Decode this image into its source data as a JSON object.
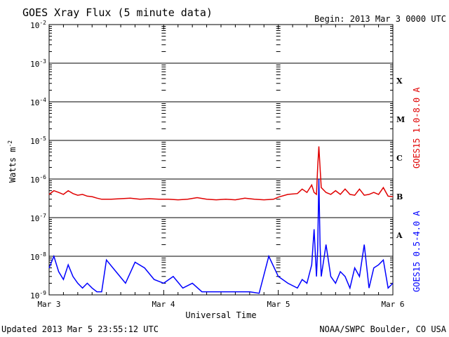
{
  "header": {
    "title": "GOES Xray Flux (5 minute data)",
    "begin_label": "Begin:  2013 Mar 3 0000 UTC"
  },
  "footer": {
    "updated": "Updated 2013 Mar  5 23:55:12 UTC",
    "source": "NOAA/SWPC Boulder, CO USA"
  },
  "chart_data": {
    "type": "line",
    "title": "GOES Xray Flux (5 minute data)",
    "xlabel": "Universal Time",
    "ylabel": "Watts m",
    "ylabel_sup": "-2",
    "y_scale": "log",
    "ylim": [
      1e-09,
      0.01
    ],
    "xlim": [
      "2013-03-03 00:00",
      "2013-03-06 00:00"
    ],
    "x_ticks": [
      "Mar 3",
      "Mar 4",
      "Mar 5",
      "Mar 6"
    ],
    "y_ticks": [
      {
        "base": "10",
        "exp": "-2"
      },
      {
        "base": "10",
        "exp": "-3"
      },
      {
        "base": "10",
        "exp": "-4"
      },
      {
        "base": "10",
        "exp": "-5"
      },
      {
        "base": "10",
        "exp": "-6"
      },
      {
        "base": "10",
        "exp": "-7"
      },
      {
        "base": "10",
        "exp": "-8"
      },
      {
        "base": "10",
        "exp": "-9"
      }
    ],
    "flare_classes": [
      "X",
      "M",
      "C",
      "B",
      "A"
    ],
    "grid": true,
    "colors": {
      "long": "#e00000",
      "short": "#0000ff",
      "axes": "#000000"
    },
    "series": [
      {
        "name": "GOES15 1.0-8.0 A",
        "color": "#e00000",
        "x": [
          "2013-03-03 00:00",
          "2013-03-03 01:00",
          "2013-03-03 02:00",
          "2013-03-03 03:00",
          "2013-03-03 04:00",
          "2013-03-03 05:00",
          "2013-03-03 06:00",
          "2013-03-03 07:00",
          "2013-03-03 08:00",
          "2013-03-03 09:00",
          "2013-03-03 10:00",
          "2013-03-03 11:00",
          "2013-03-03 13:00",
          "2013-03-03 15:00",
          "2013-03-03 17:00",
          "2013-03-03 19:00",
          "2013-03-03 21:00",
          "2013-03-03 23:00",
          "2013-03-04 01:00",
          "2013-03-04 03:00",
          "2013-03-04 05:00",
          "2013-03-04 07:00",
          "2013-03-04 09:00",
          "2013-03-04 11:00",
          "2013-03-04 13:00",
          "2013-03-04 15:00",
          "2013-03-04 17:00",
          "2013-03-04 19:00",
          "2013-03-04 21:00",
          "2013-03-04 23:00",
          "2013-03-05 00:00",
          "2013-03-05 02:00",
          "2013-03-05 04:00",
          "2013-03-05 05:00",
          "2013-03-05 06:00",
          "2013-03-05 07:00",
          "2013-03-05 07:30",
          "2013-03-05 08:00",
          "2013-03-05 08:15",
          "2013-03-05 08:30",
          "2013-03-05 08:45",
          "2013-03-05 09:00",
          "2013-03-05 10:00",
          "2013-03-05 11:00",
          "2013-03-05 12:00",
          "2013-03-05 13:00",
          "2013-03-05 14:00",
          "2013-03-05 15:00",
          "2013-03-05 16:00",
          "2013-03-05 17:00",
          "2013-03-05 18:00",
          "2013-03-05 19:00",
          "2013-03-05 20:00",
          "2013-03-05 21:00",
          "2013-03-05 22:00",
          "2013-03-05 23:00",
          "2013-03-06 00:00"
        ],
        "y": [
          4e-07,
          5e-07,
          4.5e-07,
          4e-07,
          5e-07,
          4.2e-07,
          3.8e-07,
          4e-07,
          3.6e-07,
          3.5e-07,
          3.2e-07,
          3e-07,
          3e-07,
          3.1e-07,
          3.2e-07,
          3e-07,
          3.1e-07,
          3e-07,
          3e-07,
          2.9e-07,
          3e-07,
          3.3e-07,
          3e-07,
          2.9e-07,
          3e-07,
          2.9e-07,
          3.2e-07,
          3e-07,
          2.9e-07,
          3e-07,
          3.4e-07,
          4e-07,
          4.2e-07,
          5.5e-07,
          4.5e-07,
          7e-07,
          4.5e-07,
          4e-07,
          2e-06,
          7e-06,
          2e-06,
          6e-07,
          4.5e-07,
          4e-07,
          5e-07,
          4e-07,
          5.5e-07,
          4e-07,
          3.8e-07,
          5.5e-07,
          3.8e-07,
          4e-07,
          4.5e-07,
          4e-07,
          6e-07,
          3.6e-07,
          3.5e-07
        ]
      },
      {
        "name": "GOES15 0.5-4.0 A",
        "color": "#0000ff",
        "x": [
          "2013-03-03 00:00",
          "2013-03-03 01:00",
          "2013-03-03 02:00",
          "2013-03-03 03:00",
          "2013-03-03 04:00",
          "2013-03-03 05:00",
          "2013-03-03 06:00",
          "2013-03-03 07:00",
          "2013-03-03 08:00",
          "2013-03-03 09:00",
          "2013-03-03 10:00",
          "2013-03-03 11:00",
          "2013-03-03 12:00",
          "2013-03-03 14:00",
          "2013-03-03 16:00",
          "2013-03-03 18:00",
          "2013-03-03 20:00",
          "2013-03-03 22:00",
          "2013-03-04 00:00",
          "2013-03-04 02:00",
          "2013-03-04 04:00",
          "2013-03-04 06:00",
          "2013-03-04 08:00",
          "2013-03-04 10:00",
          "2013-03-04 12:00",
          "2013-03-04 14:00",
          "2013-03-04 16:00",
          "2013-03-04 18:00",
          "2013-03-04 20:00",
          "2013-03-04 22:00",
          "2013-03-05 00:00",
          "2013-03-05 02:00",
          "2013-03-05 04:00",
          "2013-03-05 05:00",
          "2013-03-05 06:00",
          "2013-03-05 07:00",
          "2013-03-05 07:30",
          "2013-03-05 08:00",
          "2013-03-05 08:15",
          "2013-03-05 08:30",
          "2013-03-05 08:45",
          "2013-03-05 09:00",
          "2013-03-05 10:00",
          "2013-03-05 11:00",
          "2013-03-05 12:00",
          "2013-03-05 13:00",
          "2013-03-05 14:00",
          "2013-03-05 15:00",
          "2013-03-05 16:00",
          "2013-03-05 17:00",
          "2013-03-05 18:00",
          "2013-03-05 19:00",
          "2013-03-05 20:00",
          "2013-03-05 21:00",
          "2013-03-05 22:00",
          "2013-03-05 23:00",
          "2013-03-06 00:00"
        ],
        "y": [
          5e-09,
          1e-08,
          4e-09,
          2.5e-09,
          6e-09,
          3e-09,
          2e-09,
          1.5e-09,
          2e-09,
          1.5e-09,
          1.2e-09,
          1.2e-09,
          8e-09,
          4e-09,
          2e-09,
          7e-09,
          5e-09,
          2.5e-09,
          2e-09,
          3e-09,
          1.5e-09,
          2e-09,
          1.2e-09,
          1.2e-09,
          1.2e-09,
          1.2e-09,
          1.2e-09,
          1.2e-09,
          1.1e-09,
          1e-08,
          3e-09,
          2e-09,
          1.5e-09,
          2.5e-09,
          2e-09,
          6e-09,
          5e-08,
          3e-09,
          1.5e-08,
          1e-06,
          2e-08,
          3e-09,
          2e-08,
          3e-09,
          2e-09,
          4e-09,
          3e-09,
          1.5e-09,
          5e-09,
          3e-09,
          2e-08,
          1.5e-09,
          5e-09,
          6e-09,
          8e-09,
          1.5e-09,
          2e-09
        ]
      }
    ]
  }
}
